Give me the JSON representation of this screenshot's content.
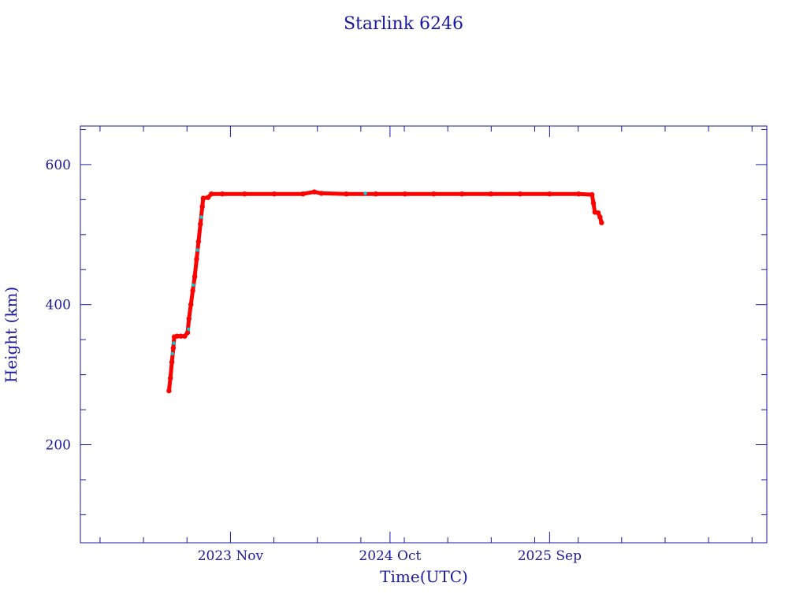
{
  "chart_data": {
    "type": "scatter",
    "title": "Starlink 6246",
    "xlabel": "Time(UTC)",
    "ylabel": "Height (km)",
    "x_type": "date",
    "xlim": [
      "2022-12-21",
      "2026-12-01"
    ],
    "ylim": [
      60,
      655
    ],
    "x_ticks": [
      {
        "date": "2023-11-01",
        "label": "2023 Nov"
      },
      {
        "date": "2024-10-01",
        "label": "2024 Oct"
      },
      {
        "date": "2025-09-01",
        "label": "2025 Sep"
      }
    ],
    "y_ticks": [
      200,
      400,
      600
    ],
    "grid": false,
    "legend": "none",
    "colors": {
      "axes": "#1a1aa0",
      "primary": "#ff0000",
      "secondary": "#00d0d0"
    },
    "series": [
      {
        "color": "#ff0000",
        "points": [
          [
            "2023-06-25",
            277
          ],
          [
            "2023-06-28",
            295
          ],
          [
            "2023-07-01",
            318
          ],
          [
            "2023-07-04",
            338
          ],
          [
            "2023-07-06",
            354
          ],
          [
            "2023-07-12",
            355
          ],
          [
            "2023-07-20",
            355
          ],
          [
            "2023-07-28",
            355
          ],
          [
            "2023-08-03",
            360
          ],
          [
            "2023-08-06",
            380
          ],
          [
            "2023-08-10",
            400
          ],
          [
            "2023-08-14",
            420
          ],
          [
            "2023-08-18",
            440
          ],
          [
            "2023-08-22",
            465
          ],
          [
            "2023-08-26",
            490
          ],
          [
            "2023-08-30",
            515
          ],
          [
            "2023-09-03",
            540
          ],
          [
            "2023-09-05",
            552
          ],
          [
            "2023-09-15",
            553
          ],
          [
            "2023-09-22",
            558
          ],
          [
            "2023-10-15",
            558
          ],
          [
            "2023-12-01",
            558
          ],
          [
            "2024-02-01",
            558
          ],
          [
            "2024-04-01",
            558
          ],
          [
            "2024-04-25",
            561
          ],
          [
            "2024-05-10",
            559
          ],
          [
            "2024-07-01",
            558
          ],
          [
            "2024-09-01",
            558
          ],
          [
            "2024-11-01",
            558
          ],
          [
            "2025-01-01",
            558
          ],
          [
            "2025-03-01",
            558
          ],
          [
            "2025-05-01",
            558
          ],
          [
            "2025-07-01",
            558
          ],
          [
            "2025-09-01",
            558
          ],
          [
            "2025-11-01",
            558
          ],
          [
            "2025-11-29",
            557
          ],
          [
            "2025-12-02",
            545
          ],
          [
            "2025-12-05",
            532
          ],
          [
            "2025-12-12",
            531
          ],
          [
            "2025-12-16",
            525
          ],
          [
            "2025-12-19",
            517
          ]
        ]
      },
      {
        "color": "#00d0d0",
        "points": [
          [
            "2023-07-02",
            330
          ],
          [
            "2023-07-05",
            345
          ],
          [
            "2023-08-05",
            365
          ],
          [
            "2023-08-15",
            428
          ],
          [
            "2023-08-24",
            478
          ],
          [
            "2023-09-01",
            525
          ],
          [
            "2024-08-10",
            559
          ]
        ]
      }
    ]
  }
}
